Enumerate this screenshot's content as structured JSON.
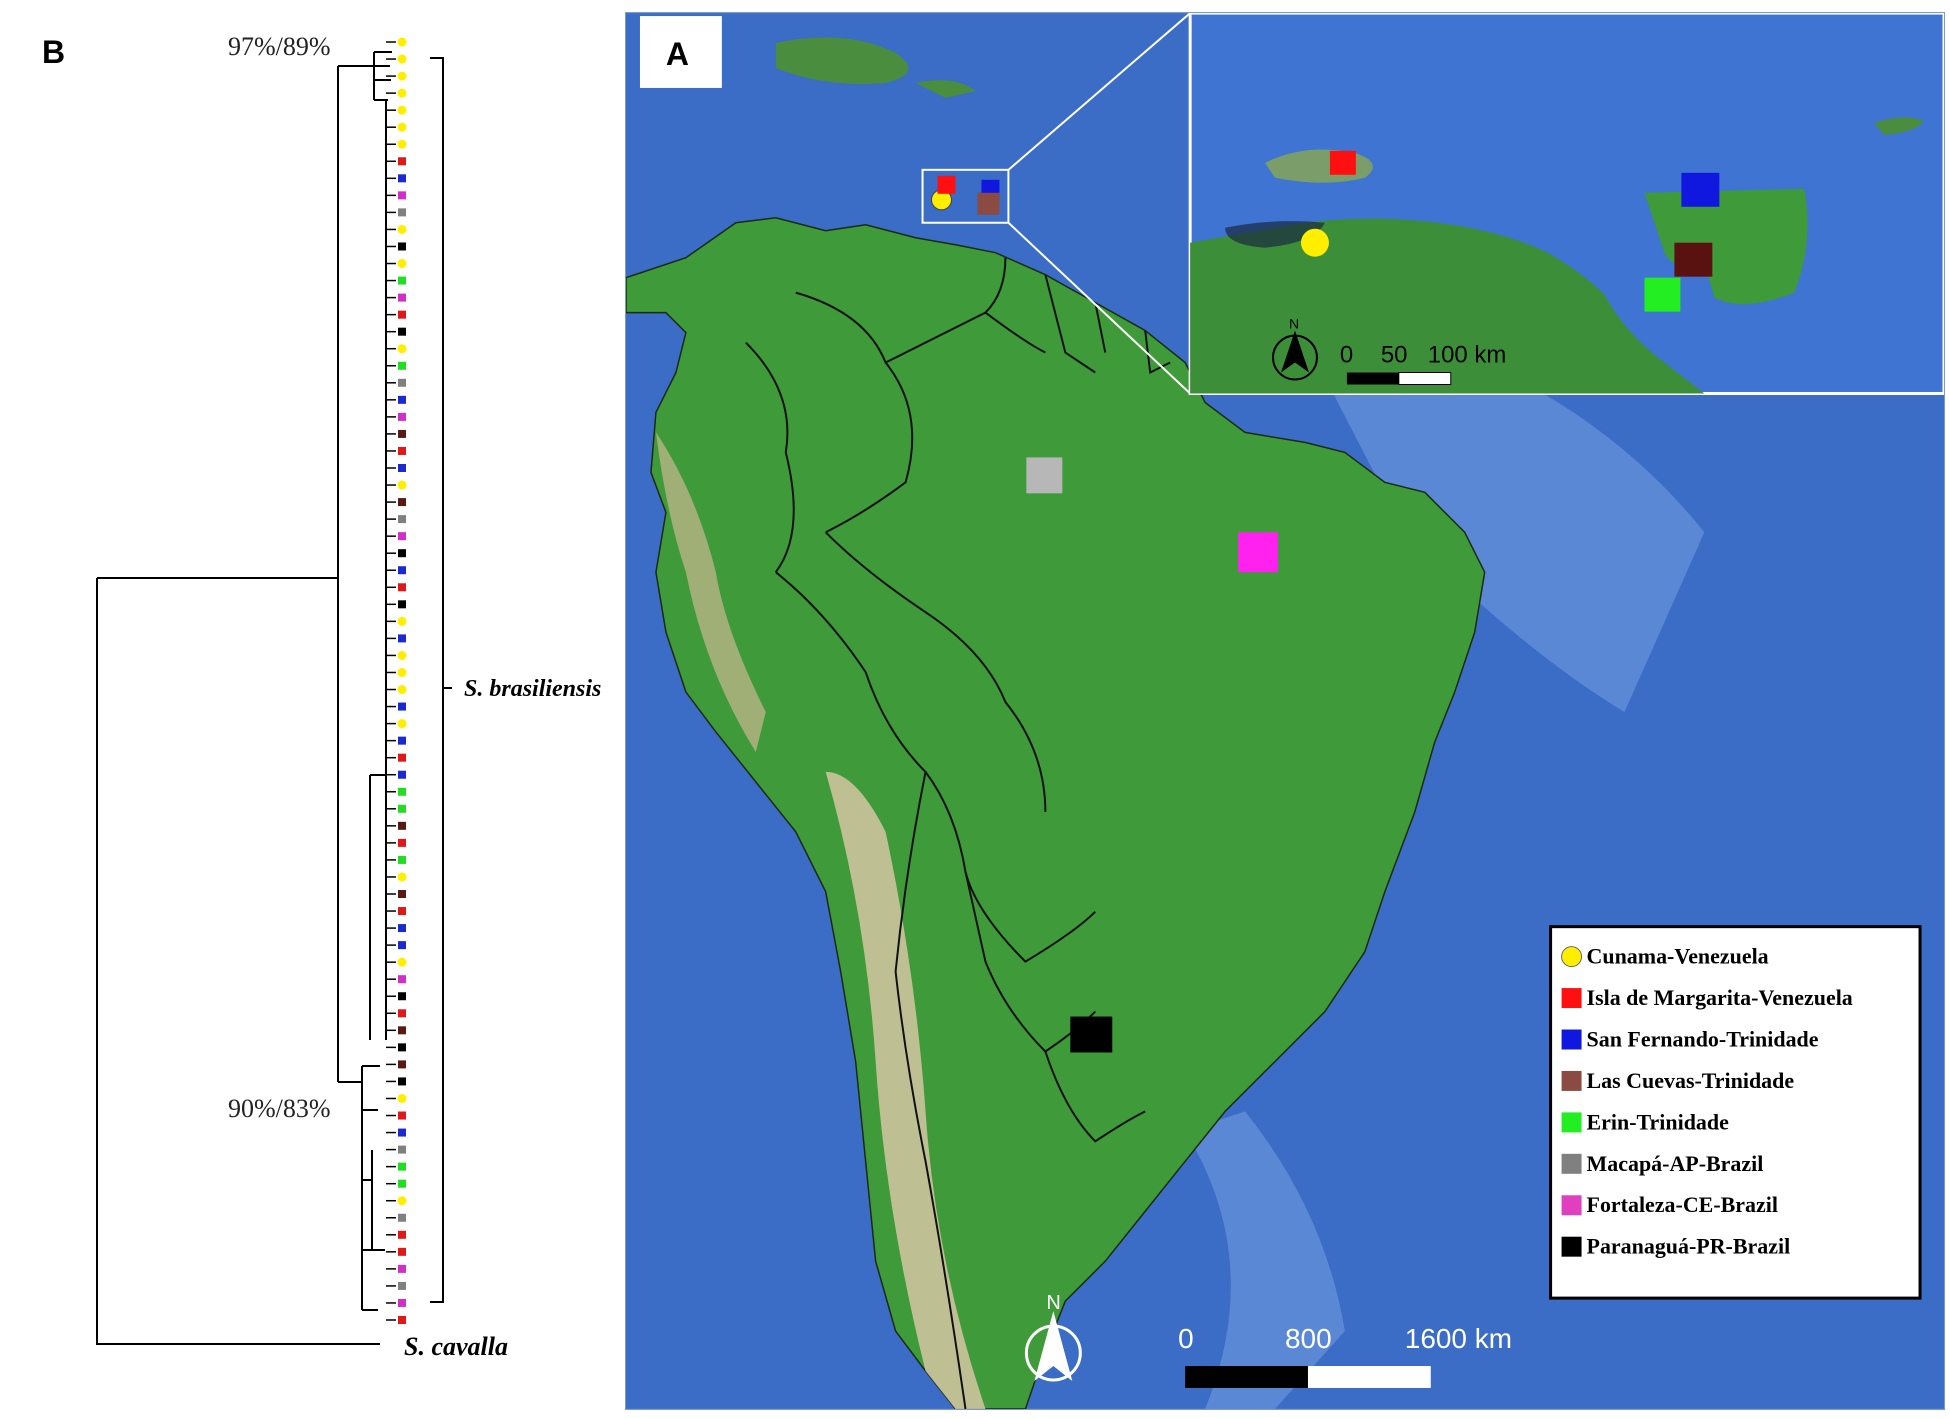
{
  "panel_b": {
    "label": "B",
    "support_top": "97%/89%",
    "support_bottom": "90%/83%",
    "ingroup_label": "S. brasiliensis",
    "outgroup_label": "S. cavalla",
    "tip_sequence": [
      "yellow",
      "yellow",
      "yellow",
      "yellow",
      "yellow",
      "yellow",
      "yellow",
      "red",
      "blue",
      "magenta",
      "gray",
      "yellow",
      "black",
      "yellow",
      "green",
      "magenta",
      "red",
      "black",
      "yellow",
      "green",
      "gray",
      "blue",
      "magenta",
      "darkred",
      "red",
      "blue",
      "yellow",
      "darkred",
      "gray",
      "magenta",
      "black",
      "blue",
      "red",
      "black",
      "yellow",
      "blue",
      "yellow",
      "yellow",
      "yellow",
      "blue",
      "yellow",
      "blue",
      "red",
      "blue",
      "green",
      "green",
      "darkred",
      "red",
      "green",
      "yellow",
      "darkred",
      "red",
      "blue",
      "blue",
      "yellow",
      "magenta",
      "black",
      "red",
      "darkred",
      "black",
      "darkred",
      "black",
      "yellow",
      "red",
      "blue",
      "gray",
      "green",
      "green",
      "yellow",
      "gray",
      "red",
      "red",
      "magenta",
      "gray",
      "magenta",
      "red"
    ]
  },
  "panel_a": {
    "label": "A",
    "inset": {
      "scale_labels": [
        "0",
        "50",
        "100 km"
      ],
      "north": "N"
    },
    "main_scale_labels": [
      "0",
      "800",
      "1600 km"
    ],
    "north": "N",
    "legend": [
      {
        "label": "Cunama-Venezuela",
        "color": "#ffee00",
        "shape": "circle"
      },
      {
        "label": "Isla de Margarita-Venezuela",
        "color": "#ff1010",
        "shape": "square"
      },
      {
        "label": "San Fernando-Trinidade",
        "color": "#1018e0",
        "shape": "square"
      },
      {
        "label": "Las Cuevas-Trinidade",
        "color": "#8b4a42",
        "shape": "square"
      },
      {
        "label": "Erin-Trinidade",
        "color": "#22ee22",
        "shape": "square"
      },
      {
        "label": "Macapá-AP-Brazil",
        "color": "#808080",
        "shape": "square"
      },
      {
        "label": "Fortaleza-CE-Brazil",
        "color": "#e040c0",
        "shape": "square"
      },
      {
        "label": "Paranaguá-PR-Brazil",
        "color": "#000000",
        "shape": "square"
      }
    ]
  },
  "colors": {
    "yellow": "#ffee00",
    "red": "#e01818",
    "blue": "#1a2ad0",
    "magenta": "#d030c8",
    "gray": "#808080",
    "black": "#000000",
    "green": "#22dd22",
    "darkred": "#5a1a14",
    "ocean": "#3a6cc4",
    "land": "#3f9a3a"
  }
}
